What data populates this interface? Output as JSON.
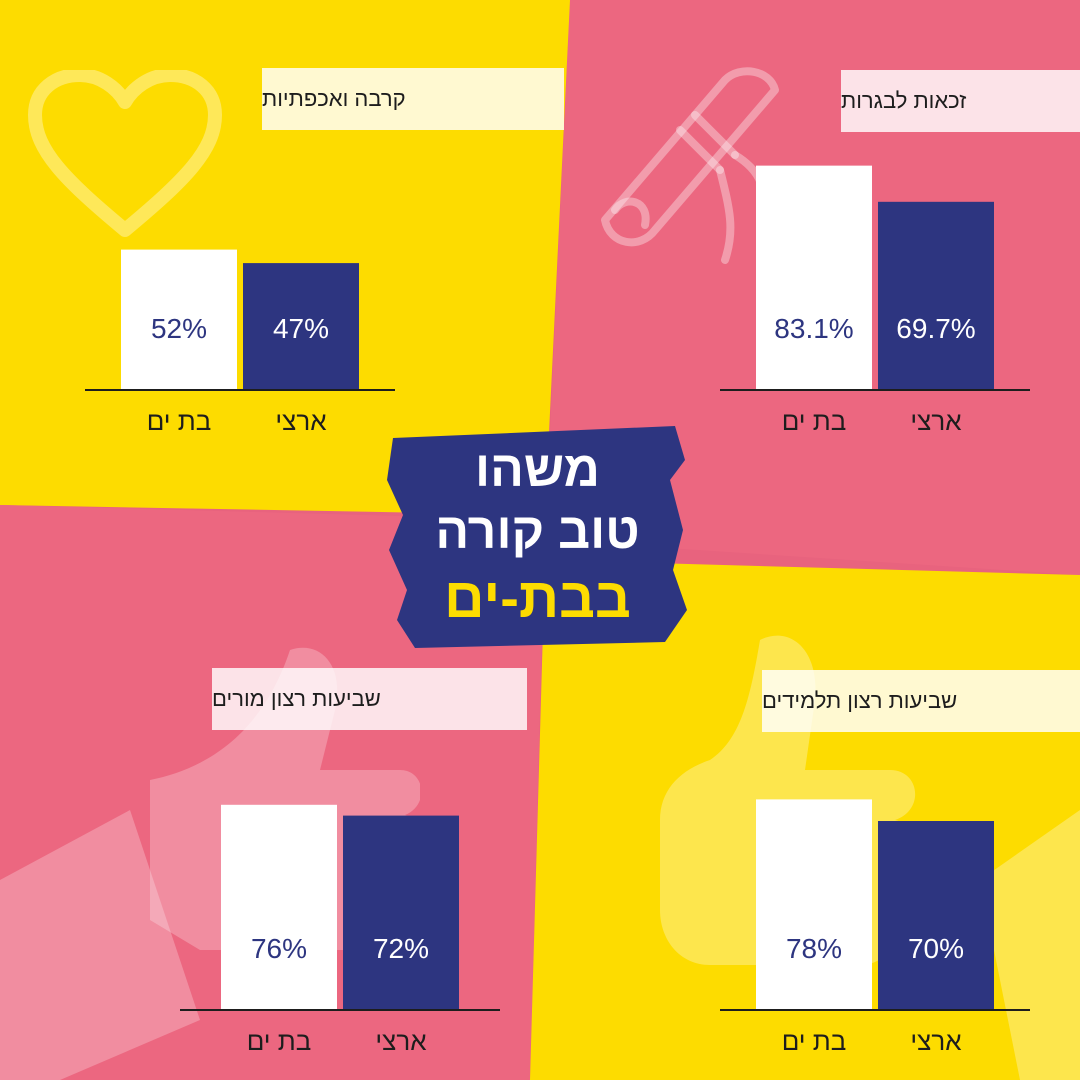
{
  "palette": {
    "yellow": "#fddc00",
    "pink": "#ec6780",
    "navy": "#2d3580",
    "white": "#ffffff"
  },
  "logo": {
    "line1": "משהו",
    "line2": "טוב קורה",
    "line3": "בבת-ים"
  },
  "chart_data": [
    {
      "type": "bar",
      "title": "קרבה ואכפתיות",
      "categories": [
        "בת ים",
        "ארצי"
      ],
      "values": [
        52,
        47
      ],
      "value_labels": [
        "52%",
        "47%"
      ],
      "colors": [
        "#ffffff",
        "#2d3580"
      ],
      "icon": "heart-icon"
    },
    {
      "type": "bar",
      "title": "זכאות לבגרות",
      "categories": [
        "בת ים",
        "ארצי"
      ],
      "values": [
        83.1,
        69.7
      ],
      "value_labels": [
        "83.1%",
        "69.7%"
      ],
      "colors": [
        "#ffffff",
        "#2d3580"
      ],
      "icon": "diploma-icon"
    },
    {
      "type": "bar",
      "title": "שביעות רצון מורים",
      "categories": [
        "בת ים",
        "ארצי"
      ],
      "values": [
        76,
        72
      ],
      "value_labels": [
        "76%",
        "72%"
      ],
      "colors": [
        "#ffffff",
        "#2d3580"
      ],
      "icon": "thumbs-up-icon"
    },
    {
      "type": "bar",
      "title": "שביעות רצון תלמידים",
      "categories": [
        "בת ים",
        "ארצי"
      ],
      "values": [
        78,
        70
      ],
      "value_labels": [
        "78%",
        "70%"
      ],
      "colors": [
        "#ffffff",
        "#2d3580"
      ],
      "icon": "thumbs-up-icon"
    }
  ]
}
